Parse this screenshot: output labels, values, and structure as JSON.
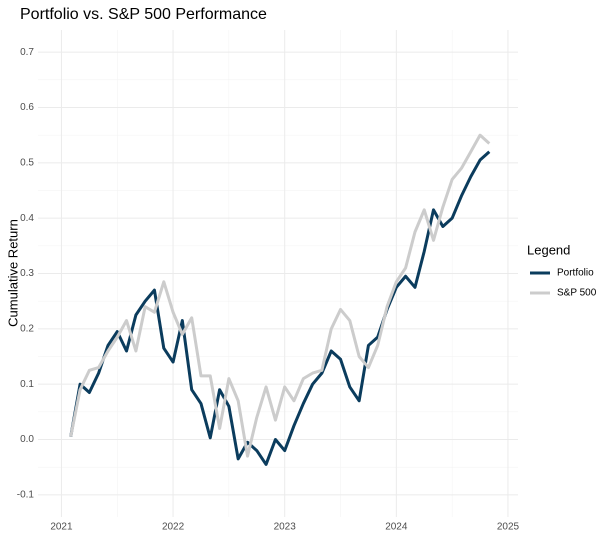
{
  "chart_data": {
    "type": "line",
    "title": "Portfolio vs. S&P 500 Performance",
    "y_label": "Cumulative Return",
    "legend_title": "Legend",
    "legend_position": "right",
    "grid": true,
    "x": [
      2021.083,
      2021.167,
      2021.25,
      2021.333,
      2021.417,
      2021.5,
      2021.583,
      2021.667,
      2021.75,
      2021.833,
      2021.917,
      2022,
      2022.083,
      2022.167,
      2022.25,
      2022.333,
      2022.417,
      2022.5,
      2022.583,
      2022.667,
      2022.75,
      2022.833,
      2022.917,
      2023,
      2023.083,
      2023.167,
      2023.25,
      2023.333,
      2023.417,
      2023.5,
      2023.583,
      2023.667,
      2023.75,
      2023.833,
      2023.917,
      2024,
      2024.083,
      2024.167,
      2024.25,
      2024.333,
      2024.417,
      2024.5,
      2024.583,
      2024.667,
      2024.75,
      2024.833
    ],
    "series": [
      {
        "name": "Portfolio",
        "color": "#0b3c5d",
        "values": [
          0.005,
          0.1,
          0.085,
          0.12,
          0.17,
          0.195,
          0.16,
          0.225,
          0.25,
          0.27,
          0.165,
          0.14,
          0.215,
          0.09,
          0.065,
          0.003,
          0.09,
          0.06,
          -0.035,
          -0.005,
          -0.02,
          -0.045,
          0.0,
          -0.02,
          0.025,
          0.065,
          0.1,
          0.12,
          0.16,
          0.145,
          0.095,
          0.07,
          0.17,
          0.185,
          0.235,
          0.275,
          0.295,
          0.275,
          0.34,
          0.415,
          0.385,
          0.4,
          0.44,
          0.475,
          0.505,
          0.52
        ]
      },
      {
        "name": "S&P 500",
        "color": "#cccccc",
        "values": [
          0.005,
          0.09,
          0.125,
          0.13,
          0.16,
          0.185,
          0.215,
          0.16,
          0.24,
          0.23,
          0.285,
          0.23,
          0.19,
          0.22,
          0.115,
          0.115,
          0.02,
          0.11,
          0.07,
          -0.03,
          0.04,
          0.095,
          0.035,
          0.095,
          0.07,
          0.11,
          0.12,
          0.125,
          0.2,
          0.235,
          0.215,
          0.15,
          0.13,
          0.17,
          0.24,
          0.285,
          0.31,
          0.375,
          0.415,
          0.36,
          0.42,
          0.47,
          0.49,
          0.52,
          0.55,
          0.535
        ]
      }
    ],
    "xlim": [
      2020.79,
      2025.09
    ],
    "xticks": [
      2021,
      2022,
      2023,
      2024,
      2025
    ],
    "ylim": [
      -0.14,
      0.74
    ],
    "yticks": [
      -0.1,
      {
        "value": 0,
        "label": "0.0"
      },
      0.1,
      0.2,
      0.3,
      0.4,
      0.5,
      0.6,
      0.7
    ]
  }
}
